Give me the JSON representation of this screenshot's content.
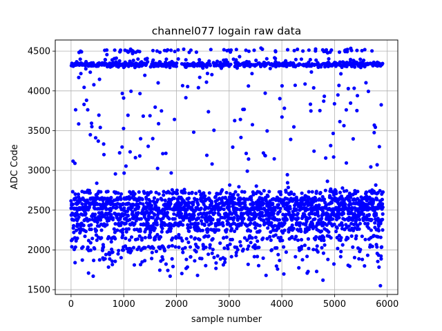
{
  "chart_data": {
    "type": "scatter",
    "title": "channel077 logain raw data",
    "xlabel": "sample number",
    "ylabel": "ADC Code",
    "xlim": [
      -300,
      6200
    ],
    "ylim": [
      1440,
      4640
    ],
    "xticks": [
      0,
      1000,
      2000,
      3000,
      4000,
      5000,
      6000
    ],
    "yticks": [
      1500,
      2000,
      2500,
      3000,
      3500,
      4000,
      4500
    ],
    "grid": true,
    "marker_color": "#0000ff",
    "n_samples": 5920,
    "bands": [
      {
        "level": 4330,
        "spread": 15,
        "weight": 0.16
      },
      {
        "level": 4390,
        "spread": 20,
        "weight": 0.015
      },
      {
        "level": 4505,
        "spread": 15,
        "weight": 0.025
      },
      {
        "level": 2720,
        "spread": 18,
        "weight": 0.05
      },
      {
        "level": 2640,
        "spread": 15,
        "weight": 0.08
      },
      {
        "level": 2580,
        "spread": 15,
        "weight": 0.08
      },
      {
        "level": 2520,
        "spread": 15,
        "weight": 0.1
      },
      {
        "level": 2450,
        "spread": 15,
        "weight": 0.09
      },
      {
        "level": 2390,
        "spread": 15,
        "weight": 0.08
      },
      {
        "level": 2320,
        "spread": 15,
        "weight": 0.06
      },
      {
        "level": 2250,
        "spread": 15,
        "weight": 0.05
      },
      {
        "level": 2150,
        "spread": 20,
        "weight": 0.04
      },
      {
        "level": 2030,
        "spread": 25,
        "weight": 0.03
      },
      {
        "level": 1900,
        "spread": 80,
        "weight": 0.03
      }
    ],
    "scatter_range": [
      1650,
      4250
    ],
    "scatter_weight": 0.08,
    "outliers": [
      {
        "x": 5870,
        "y": 1550
      },
      {
        "x": 4780,
        "y": 1620
      },
      {
        "x": 420,
        "y": 1670
      },
      {
        "x": 1880,
        "y": 1670
      },
      {
        "x": 2400,
        "y": 1680
      },
      {
        "x": 3700,
        "y": 1680
      }
    ]
  }
}
